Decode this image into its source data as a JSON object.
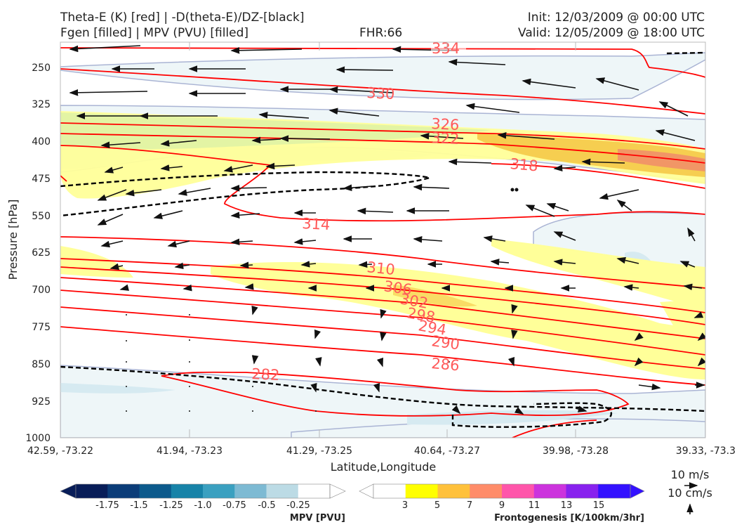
{
  "header": {
    "title_left_1": "Theta-E (K) [red] | -D(theta-E)/DZ-[black]",
    "title_left_2": "Fgen [filled] | MPV (PVU) [filled]",
    "fhr": "FHR:66",
    "init": "Init: 12/03/2009 @ 00:00 UTC",
    "valid": "Valid: 12/05/2009 @ 18:00 UTC"
  },
  "chart_data": {
    "type": "contour",
    "xlabel": "Latitude,Longitude",
    "ylabel": "Pressure [hPa]",
    "x_ticks": [
      "42.59, -73.22",
      "41.94, -73.23",
      "41.29, -73.25",
      "40.64, -73.27",
      "39.98, -73.28",
      "39.33, -73.3"
    ],
    "y_ticks": [
      "250",
      "325",
      "400",
      "475",
      "550",
      "625",
      "700",
      "775",
      "850",
      "925",
      "1000"
    ],
    "ylim": [
      1000,
      200
    ],
    "y_inverted": true,
    "theta_e_contour_labels": [
      "334",
      "330",
      "326",
      "322",
      "318",
      "314",
      "310",
      "306",
      "302",
      "298",
      "294",
      "290",
      "286",
      "282"
    ],
    "colors": {
      "theta_e": "#ff0000",
      "theta_e_label": "#ff5a5a",
      "dthetae_dz": "#000000",
      "mpv_fill": "#e9f3f6",
      "fgen_3": "#ffff99",
      "fgen_5": "#f5c542",
      "fgen_7": "#f08c6a"
    },
    "mpv_colorbar": {
      "label": "MPV [PVU]",
      "ticks": [
        "-1.75",
        "-1.5",
        "-1.25",
        "-1.0",
        "-0.75",
        "-0.5",
        "-0.25"
      ],
      "colors": [
        "#081d58",
        "#0b3c78",
        "#0c5a8c",
        "#1783a8",
        "#3aa0c0",
        "#7dbad3",
        "#bcdbe5",
        "#ffffff"
      ]
    },
    "fgen_colorbar": {
      "label": "Frontogenesis [K/100km/3hr]",
      "ticks": [
        "3",
        "5",
        "7",
        "9",
        "11",
        "13",
        "15"
      ],
      "colors": [
        "#ffffff",
        "#ffff00",
        "#ffc13b",
        "#ff8c69",
        "#ff55aa",
        "#cc33dd",
        "#8822ee",
        "#3311ff"
      ]
    },
    "wind_reference": {
      "horizontal": "10 m/s",
      "vertical": "10 cm/s"
    }
  }
}
